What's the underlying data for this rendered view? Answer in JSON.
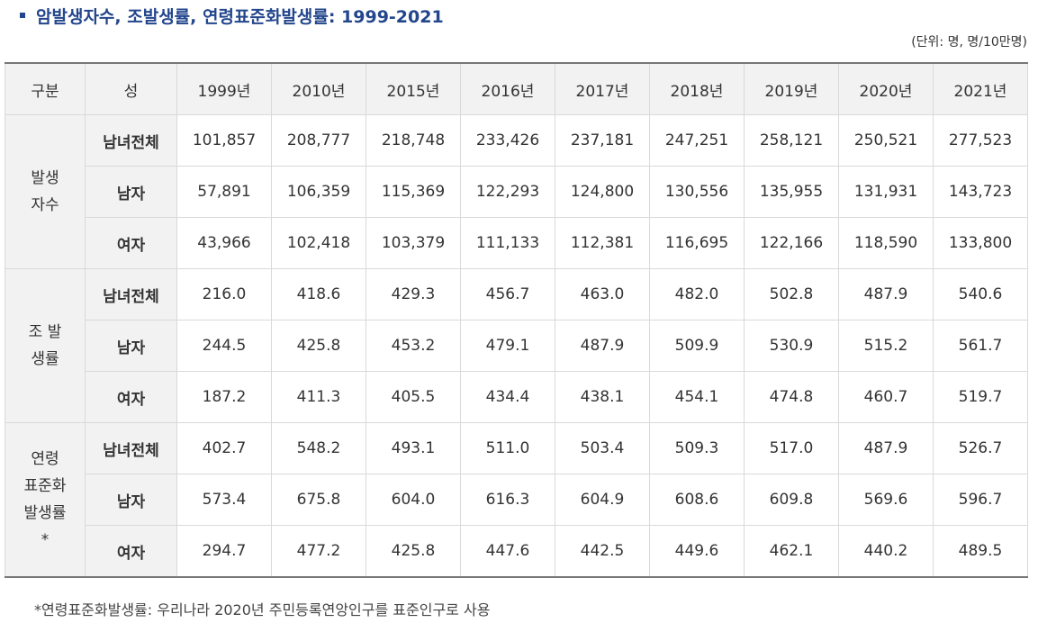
{
  "title": "암발생자수, 조발생률, 연령표준화발생률: 1999-2021",
  "unit": "(단위: 명, 명/10만명)",
  "headers": [
    "구분",
    "성",
    "1999년",
    "2010년",
    "2015년",
    "2016년",
    "2017년",
    "2018년",
    "2019년",
    "2020년",
    "2021년"
  ],
  "groups": [
    {
      "label": "발생\n자수",
      "rows": [
        {
          "sex": "남녀전체",
          "values": [
            "101,857",
            "208,777",
            "218,748",
            "233,426",
            "237,181",
            "247,251",
            "258,121",
            "250,521",
            "277,523"
          ]
        },
        {
          "sex": "남자",
          "values": [
            "57,891",
            "106,359",
            "115,369",
            "122,293",
            "124,800",
            "130,556",
            "135,955",
            "131,931",
            "143,723"
          ]
        },
        {
          "sex": "여자",
          "values": [
            "43,966",
            "102,418",
            "103,379",
            "111,133",
            "112,381",
            "116,695",
            "122,166",
            "118,590",
            "133,800"
          ]
        }
      ]
    },
    {
      "label": "조 발\n생률",
      "rows": [
        {
          "sex": "남녀전체",
          "values": [
            "216.0",
            "418.6",
            "429.3",
            "456.7",
            "463.0",
            "482.0",
            "502.8",
            "487.9",
            "540.6"
          ]
        },
        {
          "sex": "남자",
          "values": [
            "244.5",
            "425.8",
            "453.2",
            "479.1",
            "487.9",
            "509.9",
            "530.9",
            "515.2",
            "561.7"
          ]
        },
        {
          "sex": "여자",
          "values": [
            "187.2",
            "411.3",
            "405.5",
            "434.4",
            "438.1",
            "454.1",
            "474.8",
            "460.7",
            "519.7"
          ]
        }
      ]
    },
    {
      "label": "연령\n표준화\n발생률\n*",
      "rows": [
        {
          "sex": "남녀전체",
          "values": [
            "402.7",
            "548.2",
            "493.1",
            "511.0",
            "503.4",
            "509.3",
            "517.0",
            "487.9",
            "526.7"
          ]
        },
        {
          "sex": "남자",
          "values": [
            "573.4",
            "675.8",
            "604.0",
            "616.3",
            "604.9",
            "608.6",
            "609.8",
            "569.6",
            "596.7"
          ]
        },
        {
          "sex": "여자",
          "values": [
            "294.7",
            "477.2",
            "425.8",
            "447.6",
            "442.5",
            "449.6",
            "462.1",
            "440.2",
            "489.5"
          ]
        }
      ]
    }
  ],
  "footnote": "*연령표준화발생률: 우리나라 2020년 주민등록연앙인구를 표준인구로 사용"
}
